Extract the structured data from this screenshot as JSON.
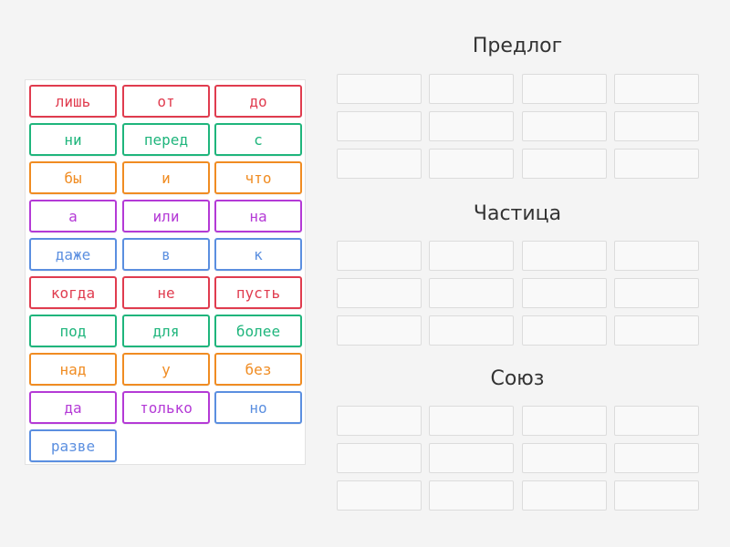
{
  "colors": {
    "red": "#e03c4f",
    "green": "#1fb57c",
    "orange": "#f08c22",
    "purple": "#b43ad6",
    "blue": "#5b8fe0"
  },
  "tiles": [
    {
      "text": "лишь",
      "color": "red"
    },
    {
      "text": "от",
      "color": "red"
    },
    {
      "text": "до",
      "color": "red"
    },
    {
      "text": "ни",
      "color": "green"
    },
    {
      "text": "перед",
      "color": "green"
    },
    {
      "text": "с",
      "color": "green"
    },
    {
      "text": "бы",
      "color": "orange"
    },
    {
      "text": "и",
      "color": "orange"
    },
    {
      "text": "что",
      "color": "orange"
    },
    {
      "text": "а",
      "color": "purple"
    },
    {
      "text": "или",
      "color": "purple"
    },
    {
      "text": "на",
      "color": "purple"
    },
    {
      "text": "даже",
      "color": "blue"
    },
    {
      "text": "в",
      "color": "blue"
    },
    {
      "text": "к",
      "color": "blue"
    },
    {
      "text": "когда",
      "color": "red"
    },
    {
      "text": "не",
      "color": "red"
    },
    {
      "text": "пусть",
      "color": "red"
    },
    {
      "text": "под",
      "color": "green"
    },
    {
      "text": "для",
      "color": "green"
    },
    {
      "text": "более",
      "color": "green"
    },
    {
      "text": "над",
      "color": "orange"
    },
    {
      "text": "у",
      "color": "orange"
    },
    {
      "text": "без",
      "color": "orange"
    },
    {
      "text": "да",
      "color": "purple"
    },
    {
      "text": "только",
      "color": "purple"
    },
    {
      "text": "но",
      "color": "blue"
    },
    {
      "text": "разве",
      "color": "blue"
    }
  ],
  "groups": [
    {
      "title": "Предлог",
      "slot_rows": 3,
      "slot_cols": 4
    },
    {
      "title": "Частица",
      "slot_rows": 3,
      "slot_cols": 4
    },
    {
      "title": "Союз",
      "slot_rows": 3,
      "slot_cols": 4
    }
  ]
}
